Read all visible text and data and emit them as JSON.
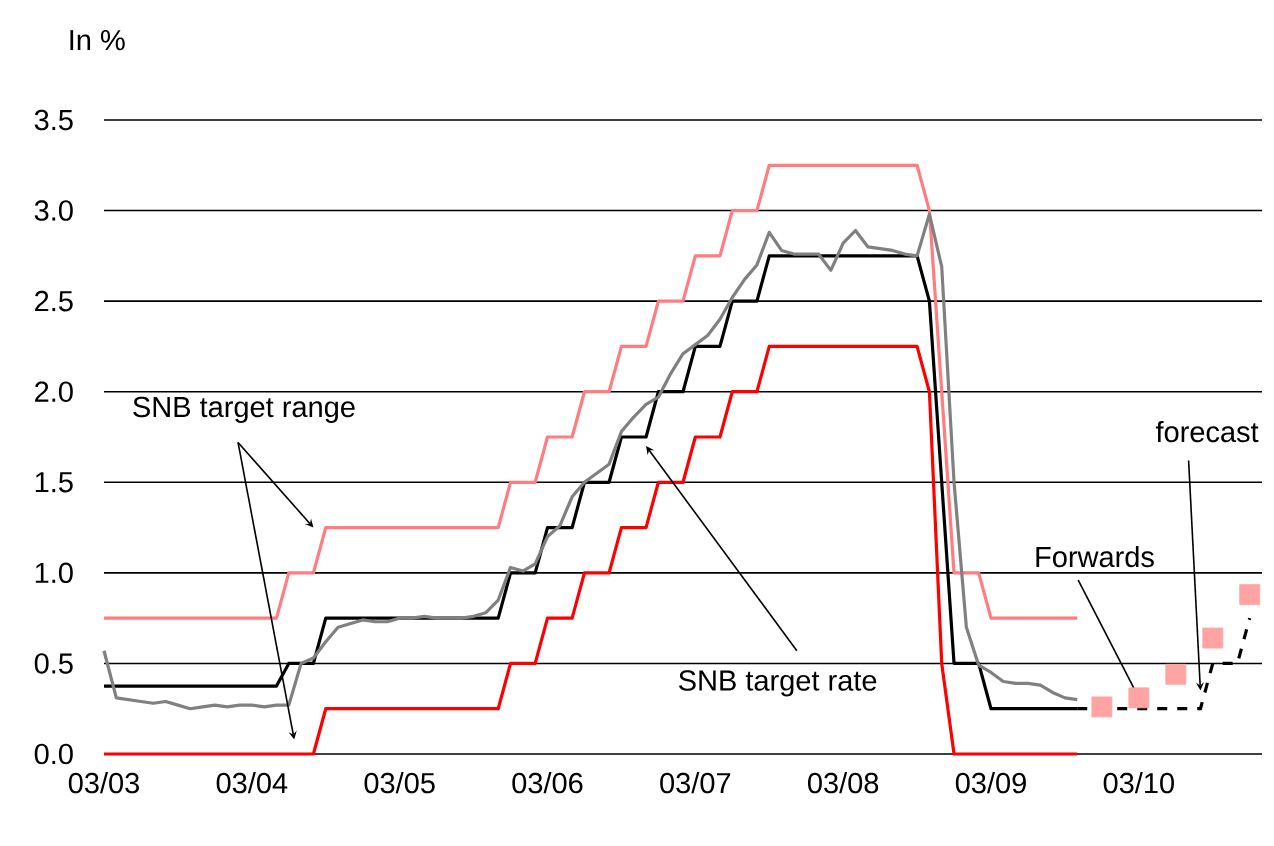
{
  "chart_data": {
    "type": "line",
    "ylabel": "In %",
    "xlim": [
      "2003-03",
      "2011-01"
    ],
    "ylim": [
      0,
      3.5
    ],
    "xticks": [
      {
        "value": "2003-03",
        "label": "03/03"
      },
      {
        "value": "2004-03",
        "label": "03/04"
      },
      {
        "value": "2005-03",
        "label": "03/05"
      },
      {
        "value": "2006-03",
        "label": "03/06"
      },
      {
        "value": "2007-03",
        "label": "03/07"
      },
      {
        "value": "2008-03",
        "label": "03/08"
      },
      {
        "value": "2009-03",
        "label": "03/09"
      },
      {
        "value": "2010-03",
        "label": "03/10"
      }
    ],
    "yticks": [
      {
        "value": 0,
        "label": "0.0"
      },
      0.5,
      {
        "value": 1,
        "label": "1.0"
      },
      1.5,
      {
        "value": 2,
        "label": "2.0"
      },
      2.5,
      {
        "value": 3,
        "label": "3.0"
      },
      3.5
    ],
    "grid": "y",
    "annotations": [
      {
        "text": "SNB target range",
        "x": "2004-08",
        "y": 1.25
      },
      {
        "text": "SNB target rate",
        "x": "2006-11",
        "y": 1.7
      },
      {
        "text": "Forwards",
        "x": "2010-03",
        "y": 0.31
      },
      {
        "text": "forecast",
        "x": "2010-08",
        "y": 0.35
      }
    ],
    "series": [
      {
        "color": "#ff7c80",
        "x": [
          "2003-03",
          "2004-05",
          "2004-06",
          "2004-08",
          "2004-09",
          "2005-11",
          "2005-12",
          "2006-02",
          "2006-03",
          "2006-05",
          "2006-06",
          "2006-08",
          "2006-09",
          "2006-11",
          "2006-12",
          "2007-02",
          "2007-03",
          "2007-05",
          "2007-06",
          "2007-08",
          "2007-09",
          "2008-09",
          "2008-10",
          "2008-12",
          "2009-02",
          "2009-03",
          "2009-10"
        ],
        "values": [
          0.75,
          0.75,
          1.0,
          1.0,
          1.25,
          1.25,
          1.5,
          1.5,
          1.75,
          1.75,
          2.0,
          2.0,
          2.25,
          2.25,
          2.5,
          2.5,
          2.75,
          2.75,
          3.0,
          3.0,
          3.25,
          3.25,
          3.0,
          1.0,
          1.0,
          0.75,
          0.75
        ]
      },
      {
        "color": "#ff0000",
        "x": [
          "2003-03",
          "2004-08",
          "2004-09",
          "2005-11",
          "2005-12",
          "2006-02",
          "2006-03",
          "2006-05",
          "2006-06",
          "2006-08",
          "2006-09",
          "2006-11",
          "2006-12",
          "2007-02",
          "2007-03",
          "2007-05",
          "2007-06",
          "2007-08",
          "2007-09",
          "2008-09",
          "2008-10",
          "2008-11",
          "2008-12",
          "2009-10"
        ],
        "values": [
          0,
          0,
          0.25,
          0.25,
          0.5,
          0.5,
          0.75,
          0.75,
          1.0,
          1.0,
          1.25,
          1.25,
          1.5,
          1.5,
          1.75,
          1.75,
          2.0,
          2.0,
          2.25,
          2.25,
          2.0,
          0.5,
          0,
          0
        ]
      },
      {
        "color": "#000000",
        "x": [
          "2003-03",
          "2004-05",
          "2004-06",
          "2004-08",
          "2004-09",
          "2005-11",
          "2005-12",
          "2006-02",
          "2006-03",
          "2006-05",
          "2006-06",
          "2006-08",
          "2006-09",
          "2006-11",
          "2006-12",
          "2007-02",
          "2007-03",
          "2007-05",
          "2007-06",
          "2007-08",
          "2007-09",
          "2008-09",
          "2008-10",
          "2008-12",
          "2009-02",
          "2009-03",
          "2009-10"
        ],
        "values": [
          0.375,
          0.375,
          0.5,
          0.5,
          0.75,
          0.75,
          1.0,
          1.0,
          1.25,
          1.25,
          1.5,
          1.5,
          1.75,
          1.75,
          2.0,
          2.0,
          2.25,
          2.25,
          2.5,
          2.5,
          2.75,
          2.75,
          2.5,
          0.5,
          0.5,
          0.25,
          0.25
        ]
      },
      {
        "color": "#808080",
        "x": [
          "2003-03",
          "2003-04",
          "2003-05",
          "2003-06",
          "2003-07",
          "2003-08",
          "2003-09",
          "2003-10",
          "2003-11",
          "2003-12",
          "2004-01",
          "2004-02",
          "2004-03",
          "2004-04",
          "2004-05",
          "2004-06",
          "2004-07",
          "2004-08",
          "2004-09",
          "2004-10",
          "2004-11",
          "2004-12",
          "2005-01",
          "2005-02",
          "2005-03",
          "2005-04",
          "2005-05",
          "2005-06",
          "2005-07",
          "2005-08",
          "2005-09",
          "2005-10",
          "2005-11",
          "2005-12",
          "2006-01",
          "2006-02",
          "2006-03",
          "2006-04",
          "2006-05",
          "2006-06",
          "2006-07",
          "2006-08",
          "2006-09",
          "2006-10",
          "2006-11",
          "2006-12",
          "2007-01",
          "2007-02",
          "2007-03",
          "2007-04",
          "2007-05",
          "2007-06",
          "2007-07",
          "2007-08",
          "2007-09",
          "2007-10",
          "2007-11",
          "2007-12",
          "2008-01",
          "2008-02",
          "2008-03",
          "2008-04",
          "2008-05",
          "2008-06",
          "2008-07",
          "2008-08",
          "2008-09",
          "2008-10",
          "2008-11",
          "2008-12",
          "2009-01",
          "2009-02",
          "2009-03",
          "2009-04",
          "2009-05",
          "2009-06",
          "2009-07",
          "2009-08",
          "2009-09",
          "2009-10"
        ],
        "values": [
          0.57,
          0.31,
          0.3,
          0.29,
          0.28,
          0.29,
          0.27,
          0.25,
          0.26,
          0.27,
          0.26,
          0.27,
          0.27,
          0.26,
          0.27,
          0.27,
          0.5,
          0.53,
          0.62,
          0.7,
          0.72,
          0.74,
          0.73,
          0.73,
          0.75,
          0.75,
          0.76,
          0.75,
          0.75,
          0.75,
          0.76,
          0.78,
          0.85,
          1.03,
          1.01,
          1.05,
          1.2,
          1.26,
          1.42,
          1.5,
          1.55,
          1.6,
          1.78,
          1.86,
          1.93,
          1.97,
          2.1,
          2.21,
          2.26,
          2.31,
          2.4,
          2.52,
          2.62,
          2.7,
          2.88,
          2.78,
          2.76,
          2.76,
          2.76,
          2.67,
          2.82,
          2.89,
          2.8,
          2.79,
          2.78,
          2.76,
          2.75,
          2.98,
          2.69,
          1.5,
          0.7,
          0.49,
          0.45,
          0.4,
          0.39,
          0.39,
          0.38,
          0.34,
          0.31,
          0.3
        ]
      },
      {
        "type": "scatter",
        "marker": "square",
        "color": "#ffa3a3",
        "x": [
          "2009-12",
          "2010-03",
          "2010-06",
          "2010-09",
          "2010-12"
        ],
        "values": [
          0.26,
          0.31,
          0.44,
          0.64,
          0.88
        ]
      },
      {
        "line_style": "dashed",
        "color": "#000000",
        "x": [
          "2009-10",
          "2010-08",
          "2010-09",
          "2010-11",
          "2010-12"
        ],
        "values": [
          0.25,
          0.25,
          0.5,
          0.5,
          0.75
        ]
      }
    ]
  }
}
